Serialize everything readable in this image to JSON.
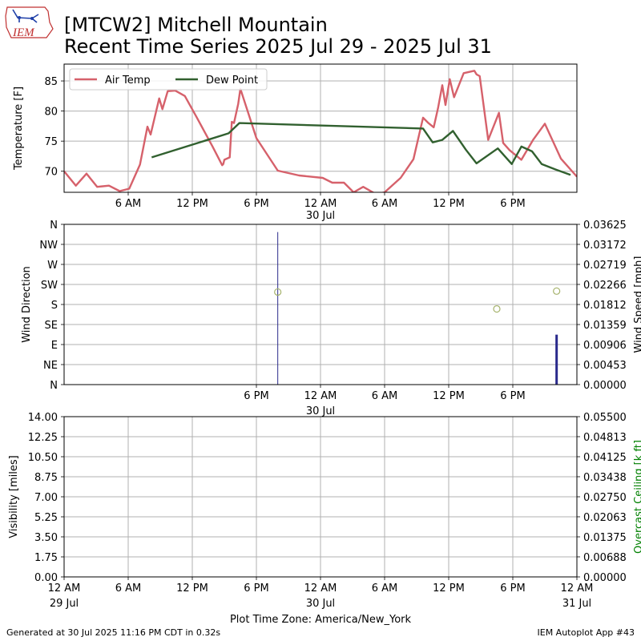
{
  "header": {
    "title_line1": "[MTCW2] Mitchell Mountain",
    "title_line2": "Recent Time Series 2025 Jul 29 - 2025 Jul 31",
    "logo_text": "IEM"
  },
  "footer": {
    "generated": "Generated at 30 Jul 2025 11:16 PM CDT in 0.32s",
    "app": "IEM Autoplot App #43"
  },
  "colors": {
    "air_temp": "#d6616b",
    "dew_point": "#31602f",
    "wind_dir_marker": "#a5b26b",
    "wind_speed": "#2a2a8c",
    "ceiling_label": "#008000",
    "grid": "#b0b0b0"
  },
  "chart_data": [
    {
      "type": "line",
      "panel": "temperature",
      "ylabel": "Temperature [F]",
      "ylim": [
        66.5,
        87.8
      ],
      "yticks": [
        70,
        75,
        80,
        85
      ],
      "xlim": [
        0,
        48
      ],
      "xticks": [
        6,
        12,
        18,
        24,
        30,
        36,
        42
      ],
      "xtick_labels": [
        "6 AM",
        "12 PM",
        "6 PM",
        "12 AM",
        "6 AM",
        "12 PM",
        "6 PM"
      ],
      "date_label": {
        "at": 24,
        "text": "30 Jul"
      },
      "grid": true,
      "legend": {
        "placement": "top-left",
        "entries": [
          "Air Temp",
          "Dew Point"
        ]
      },
      "series": [
        {
          "name": "Air Temp",
          "x": [
            0,
            1.1,
            2.1,
            3.1,
            4.2,
            5.2,
            6.1,
            7.1,
            7.8,
            8.1,
            8.9,
            9.2,
            9.7,
            10.4,
            11.3,
            12.4,
            13.9,
            14.8,
            14.9,
            15.0,
            15.5,
            15.7,
            15.9,
            16.3,
            16.5,
            18.0,
            20.0,
            22.0,
            24.2,
            25.1,
            26.2,
            27.1,
            28.0,
            29.2,
            30.0,
            31.5,
            32.7,
            33.6,
            34.1,
            34.6,
            35.0,
            35.4,
            35.7,
            36.1,
            36.5,
            37.4,
            38.4,
            38.6,
            38.9,
            39.7,
            40.7,
            41.1,
            41.7,
            42.8,
            43.9,
            45.0,
            46.5,
            48.0
          ],
          "values": [
            70.0,
            67.6,
            69.6,
            67.4,
            67.6,
            66.7,
            67.1,
            71.1,
            77.4,
            76.1,
            82.1,
            80.3,
            83.3,
            83.4,
            82.5,
            79.0,
            74.1,
            71.0,
            71.2,
            71.9,
            72.3,
            78.2,
            78.0,
            81.2,
            83.7,
            75.5,
            70.1,
            69.3,
            68.9,
            68.1,
            68.1,
            66.5,
            67.4,
            66.2,
            66.5,
            68.9,
            72.0,
            78.9,
            78.0,
            77.3,
            80.5,
            84.3,
            81.0,
            85.3,
            82.3,
            86.3,
            86.7,
            86.1,
            85.8,
            75.2,
            79.7,
            74.7,
            73.5,
            71.9,
            75.2,
            77.9,
            72.1,
            69.1
          ]
        },
        {
          "name": "Dew Point",
          "x": [
            8.2,
            15.4,
            16.4,
            33.6,
            34.5,
            35.4,
            36.4,
            37.6,
            38.6,
            40.6,
            41.9,
            42.8,
            43.8,
            44.7,
            46.0,
            47.4
          ],
          "values": [
            72.3,
            76.3,
            78.0,
            77.1,
            74.8,
            75.2,
            76.7,
            73.6,
            71.3,
            73.8,
            71.2,
            74.1,
            73.3,
            71.2,
            70.3,
            69.4
          ]
        }
      ]
    },
    {
      "type": "scatter",
      "panel": "wind",
      "ylabel": "Wind Direction",
      "y2label": "Wind Speed [mph]",
      "ylim": [
        0,
        360
      ],
      "yticks": [
        0,
        45,
        90,
        135,
        180,
        225,
        270,
        315,
        360
      ],
      "ytick_labels": [
        "N",
        "NE",
        "E",
        "SE",
        "S",
        "SW",
        "W",
        "NW",
        "N"
      ],
      "y2lim": [
        0,
        0.03625
      ],
      "y2ticks": [
        "0.00000",
        "0.00453",
        "0.00906",
        "0.01359",
        "0.01812",
        "0.02266",
        "0.02719",
        "0.03172",
        "0.03625"
      ],
      "xlim": [
        0,
        48
      ],
      "xticks": [
        18,
        24,
        30,
        36,
        42
      ],
      "xtick_labels": [
        "6 PM",
        "12 AM",
        "6 AM",
        "12 PM",
        "6 PM"
      ],
      "date_label": {
        "at": 24,
        "text": "30 Jul"
      },
      "grid": true,
      "wind_direction_points": {
        "x": [
          20.0,
          40.5,
          46.1
        ],
        "values": [
          208,
          170,
          210
        ]
      },
      "wind_speed_bars": {
        "x": [
          20.0,
          46.1
        ],
        "values": [
          0.0345,
          0.0113
        ]
      }
    },
    {
      "type": "line",
      "panel": "visibility",
      "ylabel": "Visibility [miles]",
      "y2label": "Overcast Ceiling [k ft]",
      "ylim": [
        0,
        14
      ],
      "yticks": [
        "0.00",
        "1.75",
        "3.50",
        "5.25",
        "7.00",
        "8.75",
        "10.50",
        "12.25",
        "14.00"
      ],
      "y2lim": [
        0,
        0.055
      ],
      "y2ticks": [
        "0.00000",
        "0.00688",
        "0.01375",
        "0.02063",
        "0.02750",
        "0.03438",
        "0.04125",
        "0.04813",
        "0.05500"
      ],
      "xlim": [
        0,
        48
      ],
      "xticks": [
        0,
        6,
        12,
        18,
        24,
        30,
        36,
        42,
        48
      ],
      "xtick_labels": [
        "12 AM",
        "6 AM",
        "12 PM",
        "6 PM",
        "12 AM",
        "6 AM",
        "12 PM",
        "6 PM",
        "12 AM"
      ],
      "date_labels": [
        {
          "at": 0,
          "text": "29 Jul"
        },
        {
          "at": 24,
          "text": "30 Jul"
        },
        {
          "at": 48,
          "text": "31 Jul"
        }
      ],
      "xlabel": "Plot Time Zone: America/New_York",
      "grid": true
    }
  ]
}
